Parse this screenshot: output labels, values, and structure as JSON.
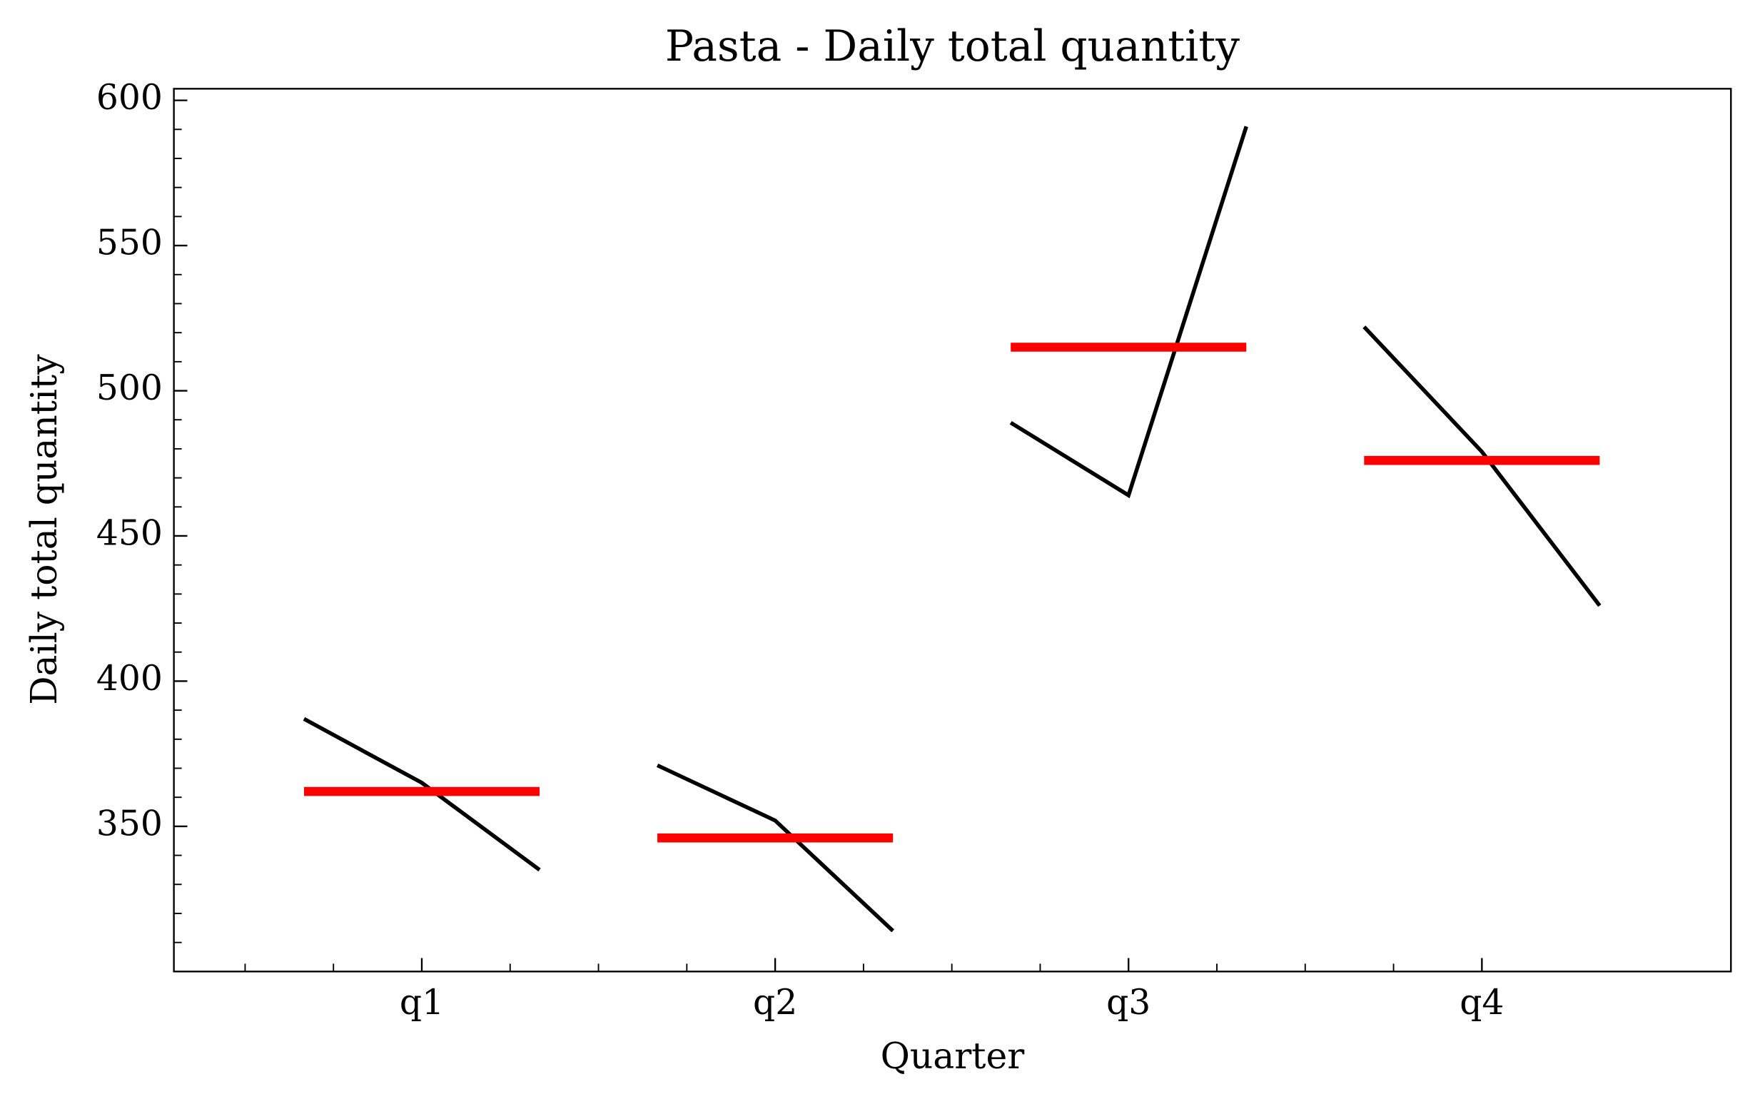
{
  "chart_data": {
    "type": "line",
    "title": "Pasta - Daily total quantity",
    "xlabel": "Quarter",
    "ylabel": "Daily total quantity",
    "categories": [
      "q1",
      "q2",
      "q3",
      "q4"
    ],
    "values": [
      [
        387,
        365,
        335
      ],
      [
        371,
        352,
        314
      ],
      [
        489,
        464,
        591
      ],
      [
        522,
        479,
        426
      ]
    ],
    "means": [
      362,
      346,
      515,
      476
    ],
    "line_color": "#000000",
    "mean_color": "#ff0000",
    "ylim": [
      300,
      604
    ],
    "yticks": [
      350,
      400,
      450,
      500,
      550,
      600
    ],
    "yticks_minor": [
      310,
      320,
      330,
      340,
      360,
      370,
      380,
      390,
      410,
      420,
      430,
      440,
      460,
      470,
      480,
      490,
      510,
      520,
      530,
      540,
      560,
      570,
      580,
      590
    ],
    "grid": false
  }
}
